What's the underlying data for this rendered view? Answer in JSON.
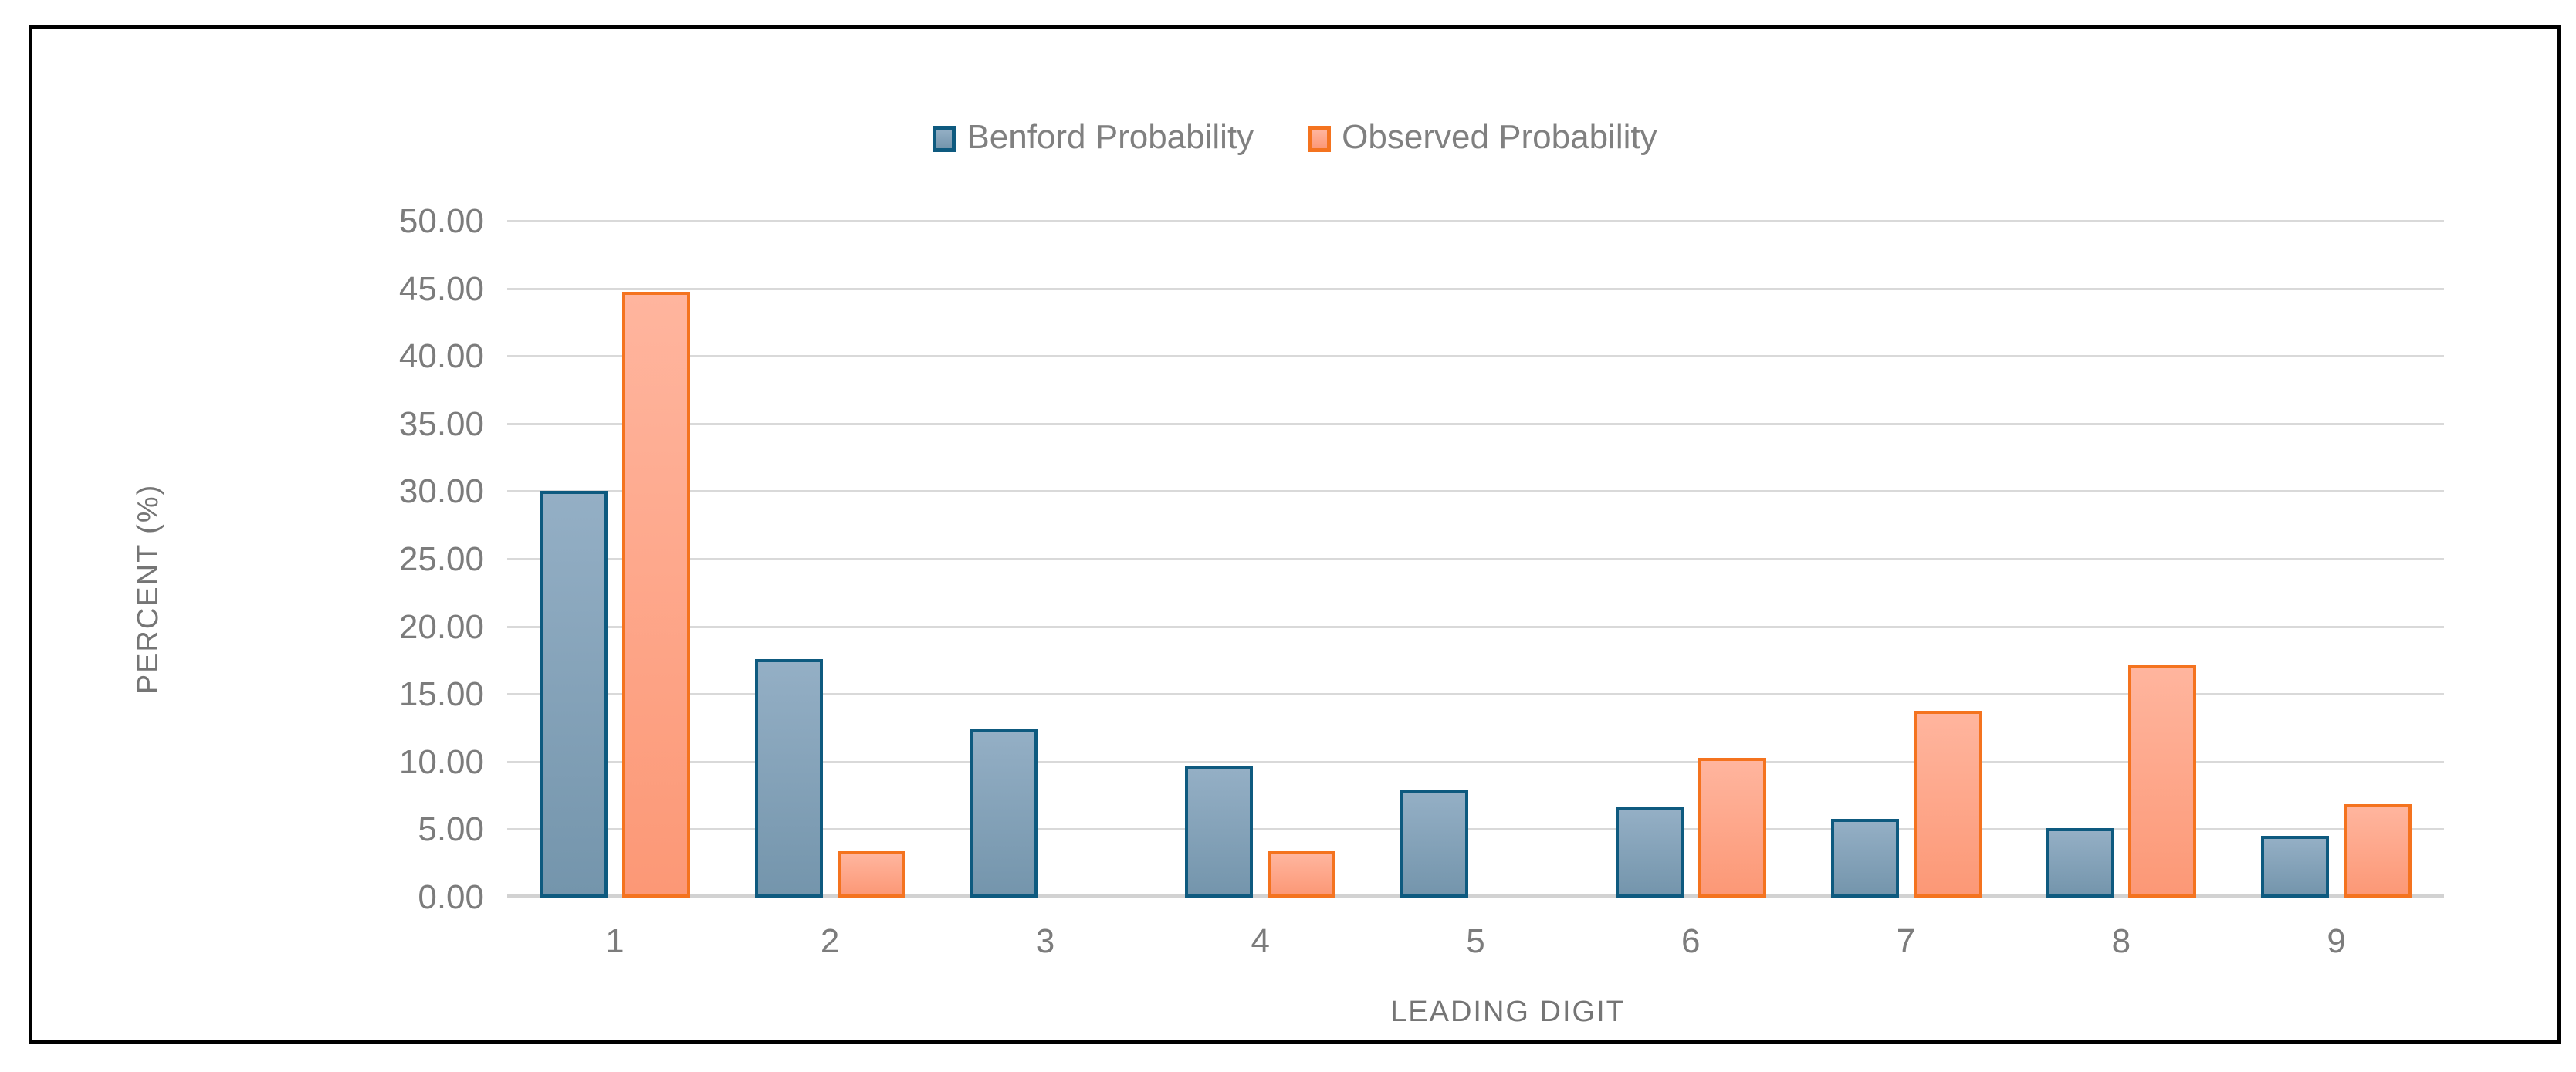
{
  "chart_data": {
    "type": "bar",
    "title": "",
    "categories": [
      "1",
      "2",
      "3",
      "4",
      "5",
      "6",
      "7",
      "8",
      "9"
    ],
    "series": [
      {
        "name": "Benford Probability",
        "key": "benford",
        "values": [
          30.1,
          17.61,
          12.49,
          9.69,
          7.92,
          6.69,
          5.8,
          5.12,
          4.58
        ],
        "fill_top": "#94afc5",
        "fill_bottom": "#7495ac",
        "border": "#0e5a7f"
      },
      {
        "name": "Observed Probability",
        "key": "observed",
        "values": [
          44.83,
          3.45,
          0.0,
          3.45,
          0.0,
          10.34,
          13.79,
          17.24,
          6.9
        ],
        "fill_top": "#ffb59e",
        "fill_bottom": "#fc9876",
        "border": "#f4731f"
      }
    ],
    "xlabel": "LEADING DIGIT",
    "ylabel": "PERCENT (%)",
    "ylim": [
      0,
      50
    ],
    "ytick_step": 5,
    "yticks": [
      "0.00",
      "5.00",
      "10.00",
      "15.00",
      "20.00",
      "25.00",
      "30.00",
      "35.00",
      "40.00",
      "45.00",
      "50.00"
    ],
    "grid": true,
    "legend_position": "top-center"
  },
  "colors": {
    "gridline": "#d9d9d9",
    "axis_baseline": "#d2d2d2",
    "tick_text": "#7c7c7c",
    "axis_title_text": "#757575",
    "legend_text": "#808080",
    "frame_border": "#000000",
    "background": "#ffffff"
  },
  "layout_text": {
    "legend_items": [
      "Benford Probability",
      "Observed Probability"
    ]
  }
}
